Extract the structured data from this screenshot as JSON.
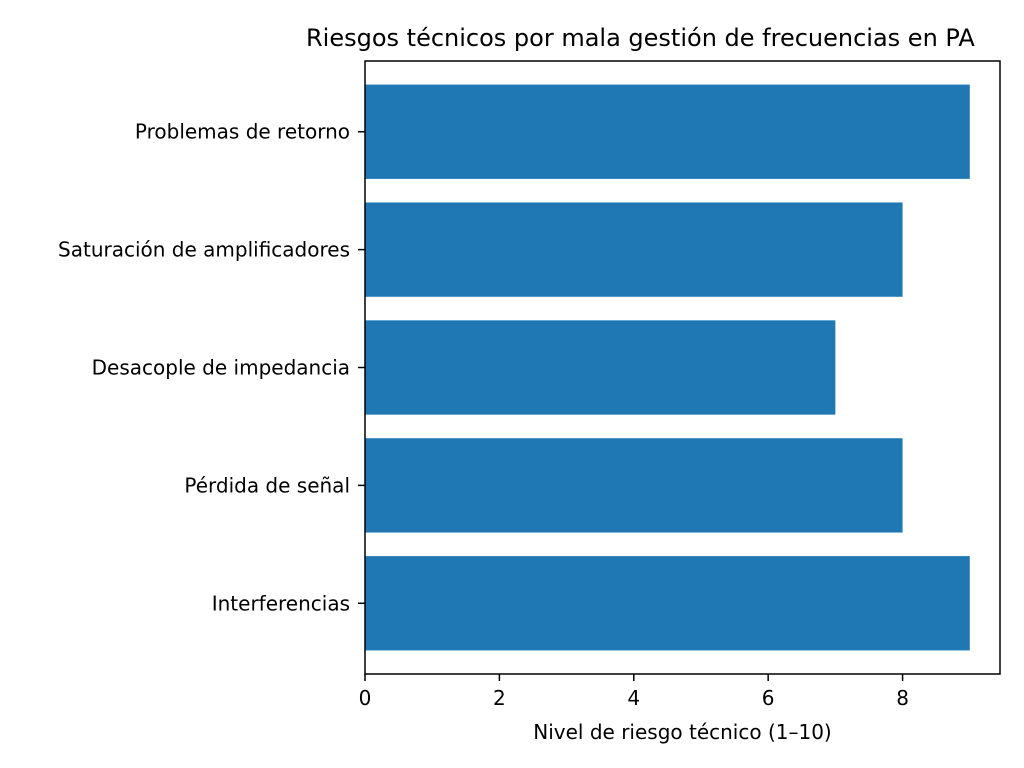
{
  "chart_data": {
    "type": "bar",
    "orientation": "horizontal",
    "title": "Riesgos técnicos por mala gestión de frecuencias en PA",
    "xlabel": "Nivel de riesgo técnico (1–10)",
    "ylabel": "",
    "categories": [
      "Interferencias",
      "Pérdida de señal",
      "Desacople de impedancia",
      "Saturación de amplificadores",
      "Problemas de retorno"
    ],
    "values": [
      9,
      8,
      7,
      8,
      9
    ],
    "xlim": [
      0,
      9.45
    ],
    "xticks": [
      "0",
      "2",
      "4",
      "6",
      "8"
    ],
    "bar_color": "#1f77b4",
    "grid": false,
    "legend": "none"
  }
}
